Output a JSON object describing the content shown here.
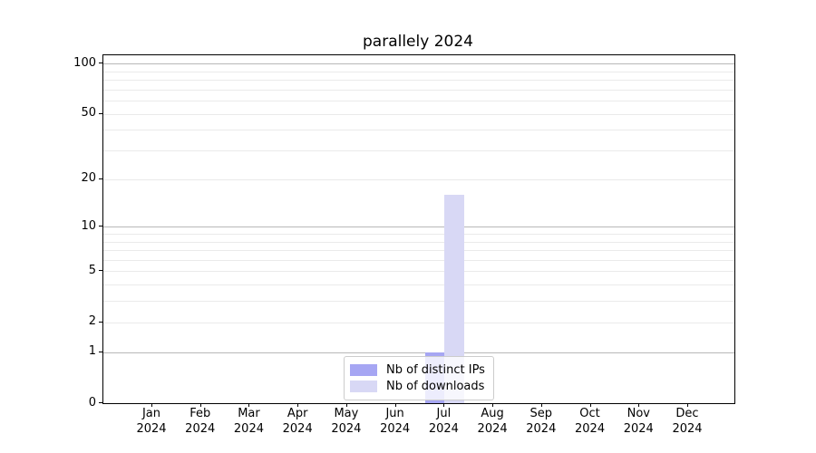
{
  "chart_data": {
    "type": "bar",
    "title": "parallely 2024",
    "year": "2024",
    "categories": [
      "Jan",
      "Feb",
      "Mar",
      "Apr",
      "May",
      "Jun",
      "Jul",
      "Aug",
      "Sep",
      "Oct",
      "Nov",
      "Dec"
    ],
    "series": [
      {
        "name": "Nb of distinct IPs",
        "key": "distinct-ips",
        "color": "#a6a6f3",
        "values": [
          0,
          0,
          0,
          0,
          0,
          0,
          1,
          0,
          0,
          0,
          0,
          0
        ]
      },
      {
        "name": "Nb of downloads",
        "key": "downloads",
        "color": "#d8d8f5",
        "values": [
          0,
          0,
          0,
          0,
          0,
          0,
          16,
          0,
          0,
          0,
          0,
          0
        ]
      }
    ],
    "yscale": "log1p",
    "ylim": [
      0,
      112
    ],
    "y_ticks": [
      {
        "value": 0,
        "label": "0"
      },
      {
        "value": 1,
        "label": "1"
      },
      {
        "value": 2,
        "label": "2"
      },
      {
        "value": 5,
        "label": "5"
      },
      {
        "value": 10,
        "label": "10"
      },
      {
        "value": 20,
        "label": "20"
      },
      {
        "value": 50,
        "label": "50"
      },
      {
        "value": 100,
        "label": "100"
      }
    ],
    "y_major_grid_values": [
      1,
      10,
      100
    ],
    "y_minor_grid_values": [
      2,
      3,
      4,
      5,
      6,
      7,
      8,
      9,
      20,
      30,
      40,
      50,
      60,
      70,
      80,
      90
    ],
    "grid": "horizontal",
    "legend_position": "lower center"
  }
}
